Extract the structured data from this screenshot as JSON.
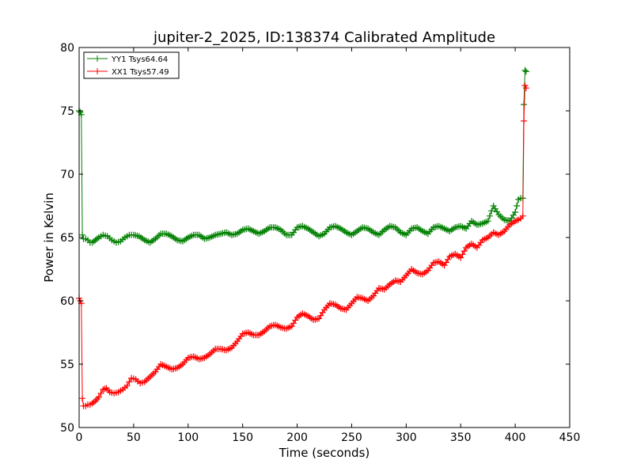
{
  "chart_data": {
    "type": "line",
    "title": "jupiter-2_2025, ID:138374 Calibrated Amplitude",
    "xlabel": "Time (seconds)",
    "ylabel": "Power in Kelvin",
    "xlim": [
      0,
      450
    ],
    "ylim": [
      50,
      80
    ],
    "xticks": [
      0,
      50,
      100,
      150,
      200,
      250,
      300,
      350,
      400,
      450
    ],
    "yticks": [
      50,
      55,
      60,
      65,
      70,
      75,
      80
    ],
    "grid": false,
    "legend_position": "top-left",
    "series": [
      {
        "name": "YY1 Tsys64.64",
        "color": "#008000",
        "marker": "+",
        "x": [
          0,
          1,
          2,
          3,
          4,
          6,
          8,
          10,
          12,
          15,
          18,
          22,
          26,
          30,
          34,
          38,
          42,
          46,
          50,
          55,
          60,
          65,
          70,
          75,
          80,
          85,
          90,
          95,
          100,
          105,
          110,
          115,
          120,
          125,
          130,
          135,
          140,
          145,
          150,
          155,
          160,
          165,
          170,
          175,
          180,
          185,
          190,
          195,
          200,
          205,
          210,
          215,
          220,
          225,
          230,
          235,
          240,
          245,
          250,
          255,
          260,
          265,
          270,
          275,
          280,
          285,
          290,
          295,
          300,
          305,
          310,
          315,
          320,
          325,
          330,
          335,
          340,
          345,
          350,
          355,
          360,
          365,
          370,
          375,
          380,
          385,
          390,
          395,
          400,
          403,
          405,
          407,
          408,
          409,
          410
        ],
        "y": [
          75.0,
          74.9,
          74.7,
          65.2,
          64.9,
          64.9,
          64.8,
          64.6,
          64.6,
          64.8,
          65.0,
          65.2,
          65.1,
          64.8,
          64.6,
          64.7,
          65.0,
          65.2,
          65.2,
          65.1,
          64.8,
          64.6,
          64.9,
          65.3,
          65.3,
          65.1,
          64.8,
          64.7,
          65.0,
          65.2,
          65.2,
          64.9,
          65.0,
          65.2,
          65.3,
          65.4,
          65.2,
          65.3,
          65.6,
          65.7,
          65.5,
          65.3,
          65.5,
          65.8,
          65.8,
          65.6,
          65.2,
          65.2,
          65.8,
          65.9,
          65.7,
          65.4,
          65.1,
          65.3,
          65.8,
          65.9,
          65.7,
          65.4,
          65.2,
          65.5,
          65.8,
          65.7,
          65.4,
          65.2,
          65.6,
          65.9,
          65.8,
          65.4,
          65.2,
          65.7,
          65.8,
          65.5,
          65.3,
          65.8,
          65.9,
          65.7,
          65.5,
          65.8,
          65.9,
          65.7,
          66.3,
          66.0,
          66.1,
          66.3,
          67.5,
          66.8,
          66.4,
          66.3,
          67.0,
          68.0,
          68.1,
          68.1,
          75.5,
          78.2,
          78.1
        ]
      },
      {
        "name": "XX1 Tsys57.49",
        "color": "#ff0000",
        "marker": "+",
        "x": [
          0,
          1,
          2,
          3,
          4,
          6,
          8,
          10,
          12,
          15,
          18,
          22,
          25,
          28,
          32,
          36,
          40,
          44,
          48,
          52,
          56,
          60,
          65,
          70,
          75,
          80,
          85,
          90,
          95,
          100,
          105,
          110,
          115,
          120,
          125,
          130,
          135,
          140,
          145,
          150,
          155,
          160,
          165,
          170,
          175,
          180,
          185,
          190,
          195,
          200,
          205,
          210,
          215,
          220,
          225,
          230,
          235,
          240,
          245,
          250,
          255,
          260,
          265,
          270,
          275,
          280,
          285,
          290,
          295,
          300,
          305,
          310,
          315,
          320,
          325,
          330,
          335,
          340,
          345,
          350,
          355,
          360,
          365,
          370,
          375,
          380,
          385,
          390,
          395,
          400,
          403,
          405,
          407,
          408,
          409,
          410
        ],
        "y": [
          60.2,
          60.0,
          59.8,
          52.3,
          51.7,
          51.7,
          51.8,
          51.8,
          51.9,
          52.1,
          52.4,
          53.0,
          53.1,
          52.8,
          52.7,
          52.8,
          53.0,
          53.3,
          53.9,
          53.8,
          53.5,
          53.6,
          54.0,
          54.4,
          55.0,
          54.8,
          54.6,
          54.7,
          55.0,
          55.5,
          55.6,
          55.4,
          55.5,
          55.8,
          56.2,
          56.2,
          56.1,
          56.3,
          56.8,
          57.4,
          57.5,
          57.3,
          57.3,
          57.6,
          58.0,
          58.1,
          57.9,
          57.8,
          58.0,
          58.7,
          59.0,
          58.8,
          58.5,
          58.6,
          59.3,
          59.8,
          59.7,
          59.4,
          59.3,
          59.8,
          60.3,
          60.2,
          60.0,
          60.4,
          61.0,
          60.9,
          61.3,
          61.6,
          61.5,
          62.0,
          62.5,
          62.2,
          62.1,
          62.4,
          63.0,
          63.1,
          62.8,
          63.5,
          63.7,
          63.4,
          64.2,
          64.5,
          64.2,
          64.8,
          65.0,
          65.4,
          65.2,
          65.5,
          66.0,
          66.3,
          66.4,
          66.5,
          66.7,
          74.2,
          77.0,
          76.8
        ]
      }
    ]
  }
}
